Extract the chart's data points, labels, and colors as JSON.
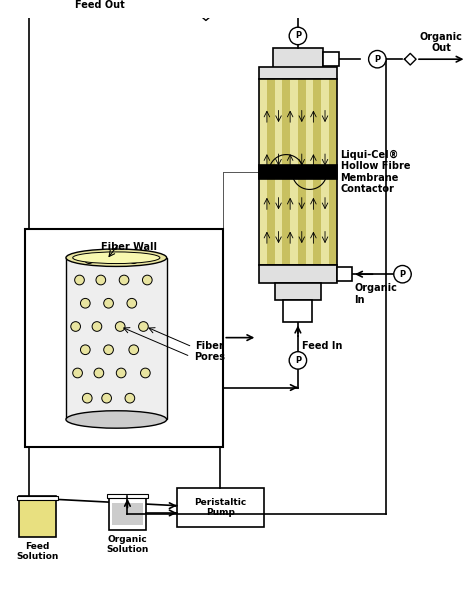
{
  "bg_color": "#ffffff",
  "line_color": "#000000",
  "fiber_yellow": "#e8e4a0",
  "fiber_dark": "#c8c060",
  "solution_yellow": "#e8e080",
  "labels": {
    "feed_out": "Feed Out",
    "organic_out": "Organic\nOut",
    "organic_in": "Organic\nIn",
    "feed_in": "Feed In",
    "fiber_wall": "Fiber Wall",
    "fiber_pores": "Fiber\nPores",
    "liqui_cel": "Liqui-Cel®\nHollow Fibre\nMembrane\nContactor",
    "peristaltic_pump": "Peristaltic\nPump",
    "feed_solution": "Feed\nSolution",
    "organic_solution": "Organic\nSolution"
  }
}
